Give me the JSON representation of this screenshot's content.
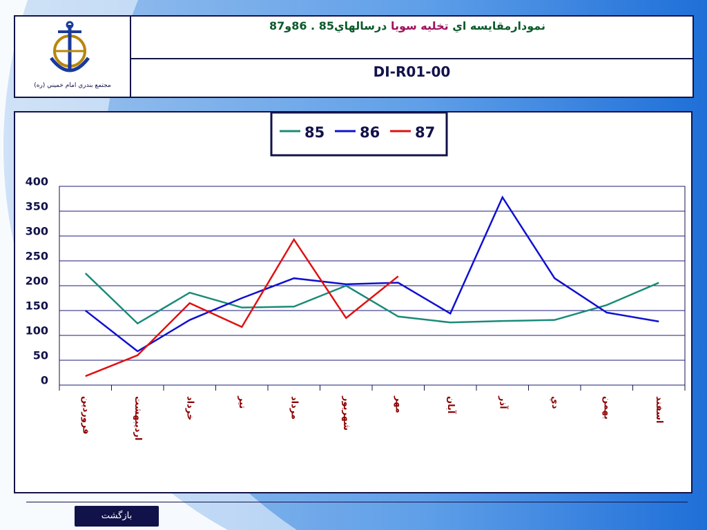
{
  "header": {
    "title": [
      "نمودارمقايسه اي",
      "تخليه سويا",
      "درسالهاي85 . 86و87"
    ],
    "code": "DI-R01-00",
    "logo_caption": "مجتمع بندري امام خميني (ره)"
  },
  "chart_data": {
    "type": "line",
    "categories": [
      "فروردين",
      "ارديبهشت",
      "خرداد",
      "تير",
      "مرداد",
      "شهريور",
      "مهر",
      "آبان",
      "آذر",
      "دي",
      "بهمن",
      "اسفند"
    ],
    "series": [
      {
        "name": "85",
        "color": "#1a8a78",
        "values": [
          225,
          124,
          186,
          156,
          158,
          200,
          138,
          126,
          129,
          131,
          161,
          206
        ]
      },
      {
        "name": "86",
        "color": "#1010d0",
        "values": [
          150,
          68,
          131,
          175,
          215,
          203,
          206,
          144,
          378,
          215,
          146,
          128
        ]
      },
      {
        "name": "87",
        "color": "#e01010",
        "values": [
          18,
          60,
          165,
          117,
          293,
          135,
          219,
          null,
          null,
          null,
          null,
          null
        ]
      }
    ],
    "ylim": [
      0,
      400
    ],
    "yticks": [
      0,
      50,
      100,
      150,
      200,
      250,
      300,
      350,
      400
    ],
    "grid": true,
    "legend": "top"
  },
  "back_button": "بازگشت"
}
